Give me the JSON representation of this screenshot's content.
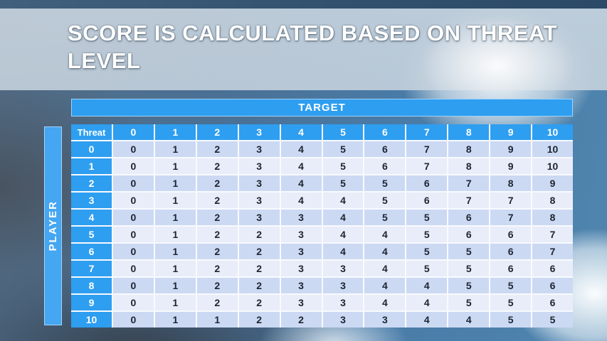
{
  "slide": {
    "title": "SCORE IS CALCULATED BASED ON THREAT LEVEL"
  },
  "table": {
    "target_label": "TARGET",
    "player_label": "PLAYER",
    "corner_label": "Threat",
    "column_headers": [
      "0",
      "1",
      "2",
      "3",
      "4",
      "5",
      "6",
      "7",
      "8",
      "9",
      "10"
    ],
    "row_headers": [
      "0",
      "1",
      "2",
      "3",
      "4",
      "5",
      "6",
      "7",
      "8",
      "9",
      "10"
    ],
    "rows": [
      [
        0,
        1,
        2,
        3,
        4,
        5,
        6,
        7,
        8,
        9,
        10
      ],
      [
        0,
        1,
        2,
        3,
        4,
        5,
        6,
        7,
        8,
        9,
        10
      ],
      [
        0,
        1,
        2,
        3,
        4,
        5,
        5,
        6,
        7,
        8,
        9
      ],
      [
        0,
        1,
        2,
        3,
        4,
        4,
        5,
        6,
        7,
        7,
        8
      ],
      [
        0,
        1,
        2,
        3,
        3,
        4,
        5,
        5,
        6,
        7,
        8
      ],
      [
        0,
        1,
        2,
        2,
        3,
        4,
        4,
        5,
        6,
        6,
        7
      ],
      [
        0,
        1,
        2,
        2,
        3,
        4,
        4,
        5,
        5,
        6,
        7
      ],
      [
        0,
        1,
        2,
        2,
        3,
        3,
        4,
        5,
        5,
        6,
        6
      ],
      [
        0,
        1,
        2,
        2,
        3,
        3,
        4,
        4,
        5,
        5,
        6
      ],
      [
        0,
        1,
        2,
        2,
        3,
        3,
        4,
        4,
        5,
        5,
        6
      ],
      [
        0,
        1,
        1,
        2,
        2,
        3,
        3,
        4,
        4,
        5,
        5
      ]
    ]
  },
  "colors": {
    "accent_blue": "#2e9ef0",
    "player_bar_blue": "#45a6f2",
    "row_band_even": "#ccd9f3",
    "row_band_odd": "#e9edf9",
    "gridline": "#f8fafd",
    "cell_text": "#1e2430",
    "header_text": "#ffffff",
    "top_strip": "#32516f"
  }
}
